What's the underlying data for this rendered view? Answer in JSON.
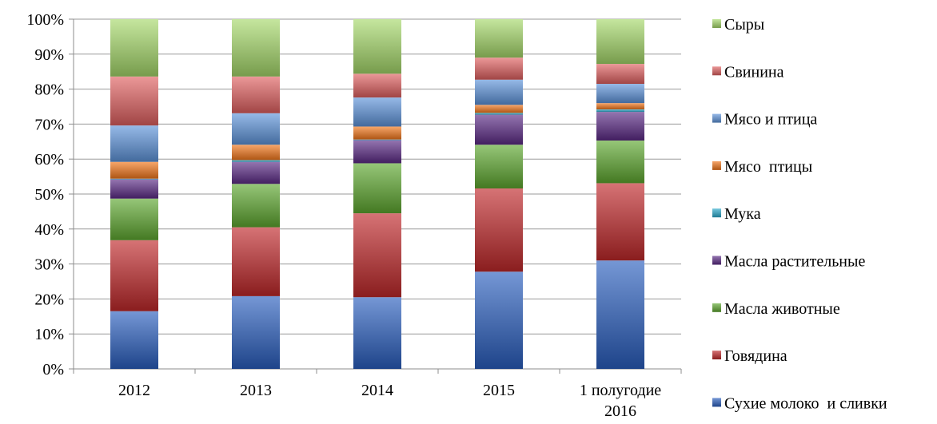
{
  "chart_data": {
    "type": "bar",
    "stacked": true,
    "percent_stacked": true,
    "categories": [
      "2012",
      "2013",
      "2014",
      "2015",
      "1 полугодие 2016"
    ],
    "ylim": [
      0,
      100
    ],
    "yticks": [
      "0%",
      "10%",
      "20%",
      "30%",
      "40%",
      "50%",
      "60%",
      "70%",
      "80%",
      "90%",
      "100%"
    ],
    "grid": true,
    "legend_position": "right",
    "series": [
      {
        "name": "Сухие молоко  и сливки",
        "color": "#2a5fbf",
        "values": [
          16.5,
          20.8,
          20.5,
          27.8,
          31.0
        ]
      },
      {
        "name": "Говядина",
        "color": "#c0282a",
        "values": [
          20.3,
          19.7,
          24.0,
          23.8,
          22.1
        ]
      },
      {
        "name": "Масла животные",
        "color": "#5ea82f",
        "values": [
          11.9,
          12.4,
          14.3,
          12.5,
          12.2
        ]
      },
      {
        "name": "Масла растительные",
        "color": "#5b2a86",
        "values": [
          5.5,
          6.3,
          6.6,
          8.6,
          8.2
        ]
      },
      {
        "name": "Мука",
        "color": "#29a9cc",
        "values": [
          0.2,
          0.5,
          0.2,
          0.5,
          0.7
        ]
      },
      {
        "name": "Мясо  птицы",
        "color": "#f2761a",
        "values": [
          4.8,
          4.4,
          3.7,
          2.3,
          1.8
        ]
      },
      {
        "name": "Мясо и птица",
        "color": "#5d93da",
        "values": [
          10.4,
          9.0,
          8.3,
          7.2,
          5.5
        ]
      },
      {
        "name": "Свинина",
        "color": "#e06060",
        "values": [
          14.0,
          10.5,
          6.8,
          6.3,
          5.7
        ]
      },
      {
        "name": "Сыры",
        "color": "#a5d86a",
        "values": [
          16.4,
          16.4,
          15.6,
          11.0,
          12.8
        ]
      }
    ]
  }
}
